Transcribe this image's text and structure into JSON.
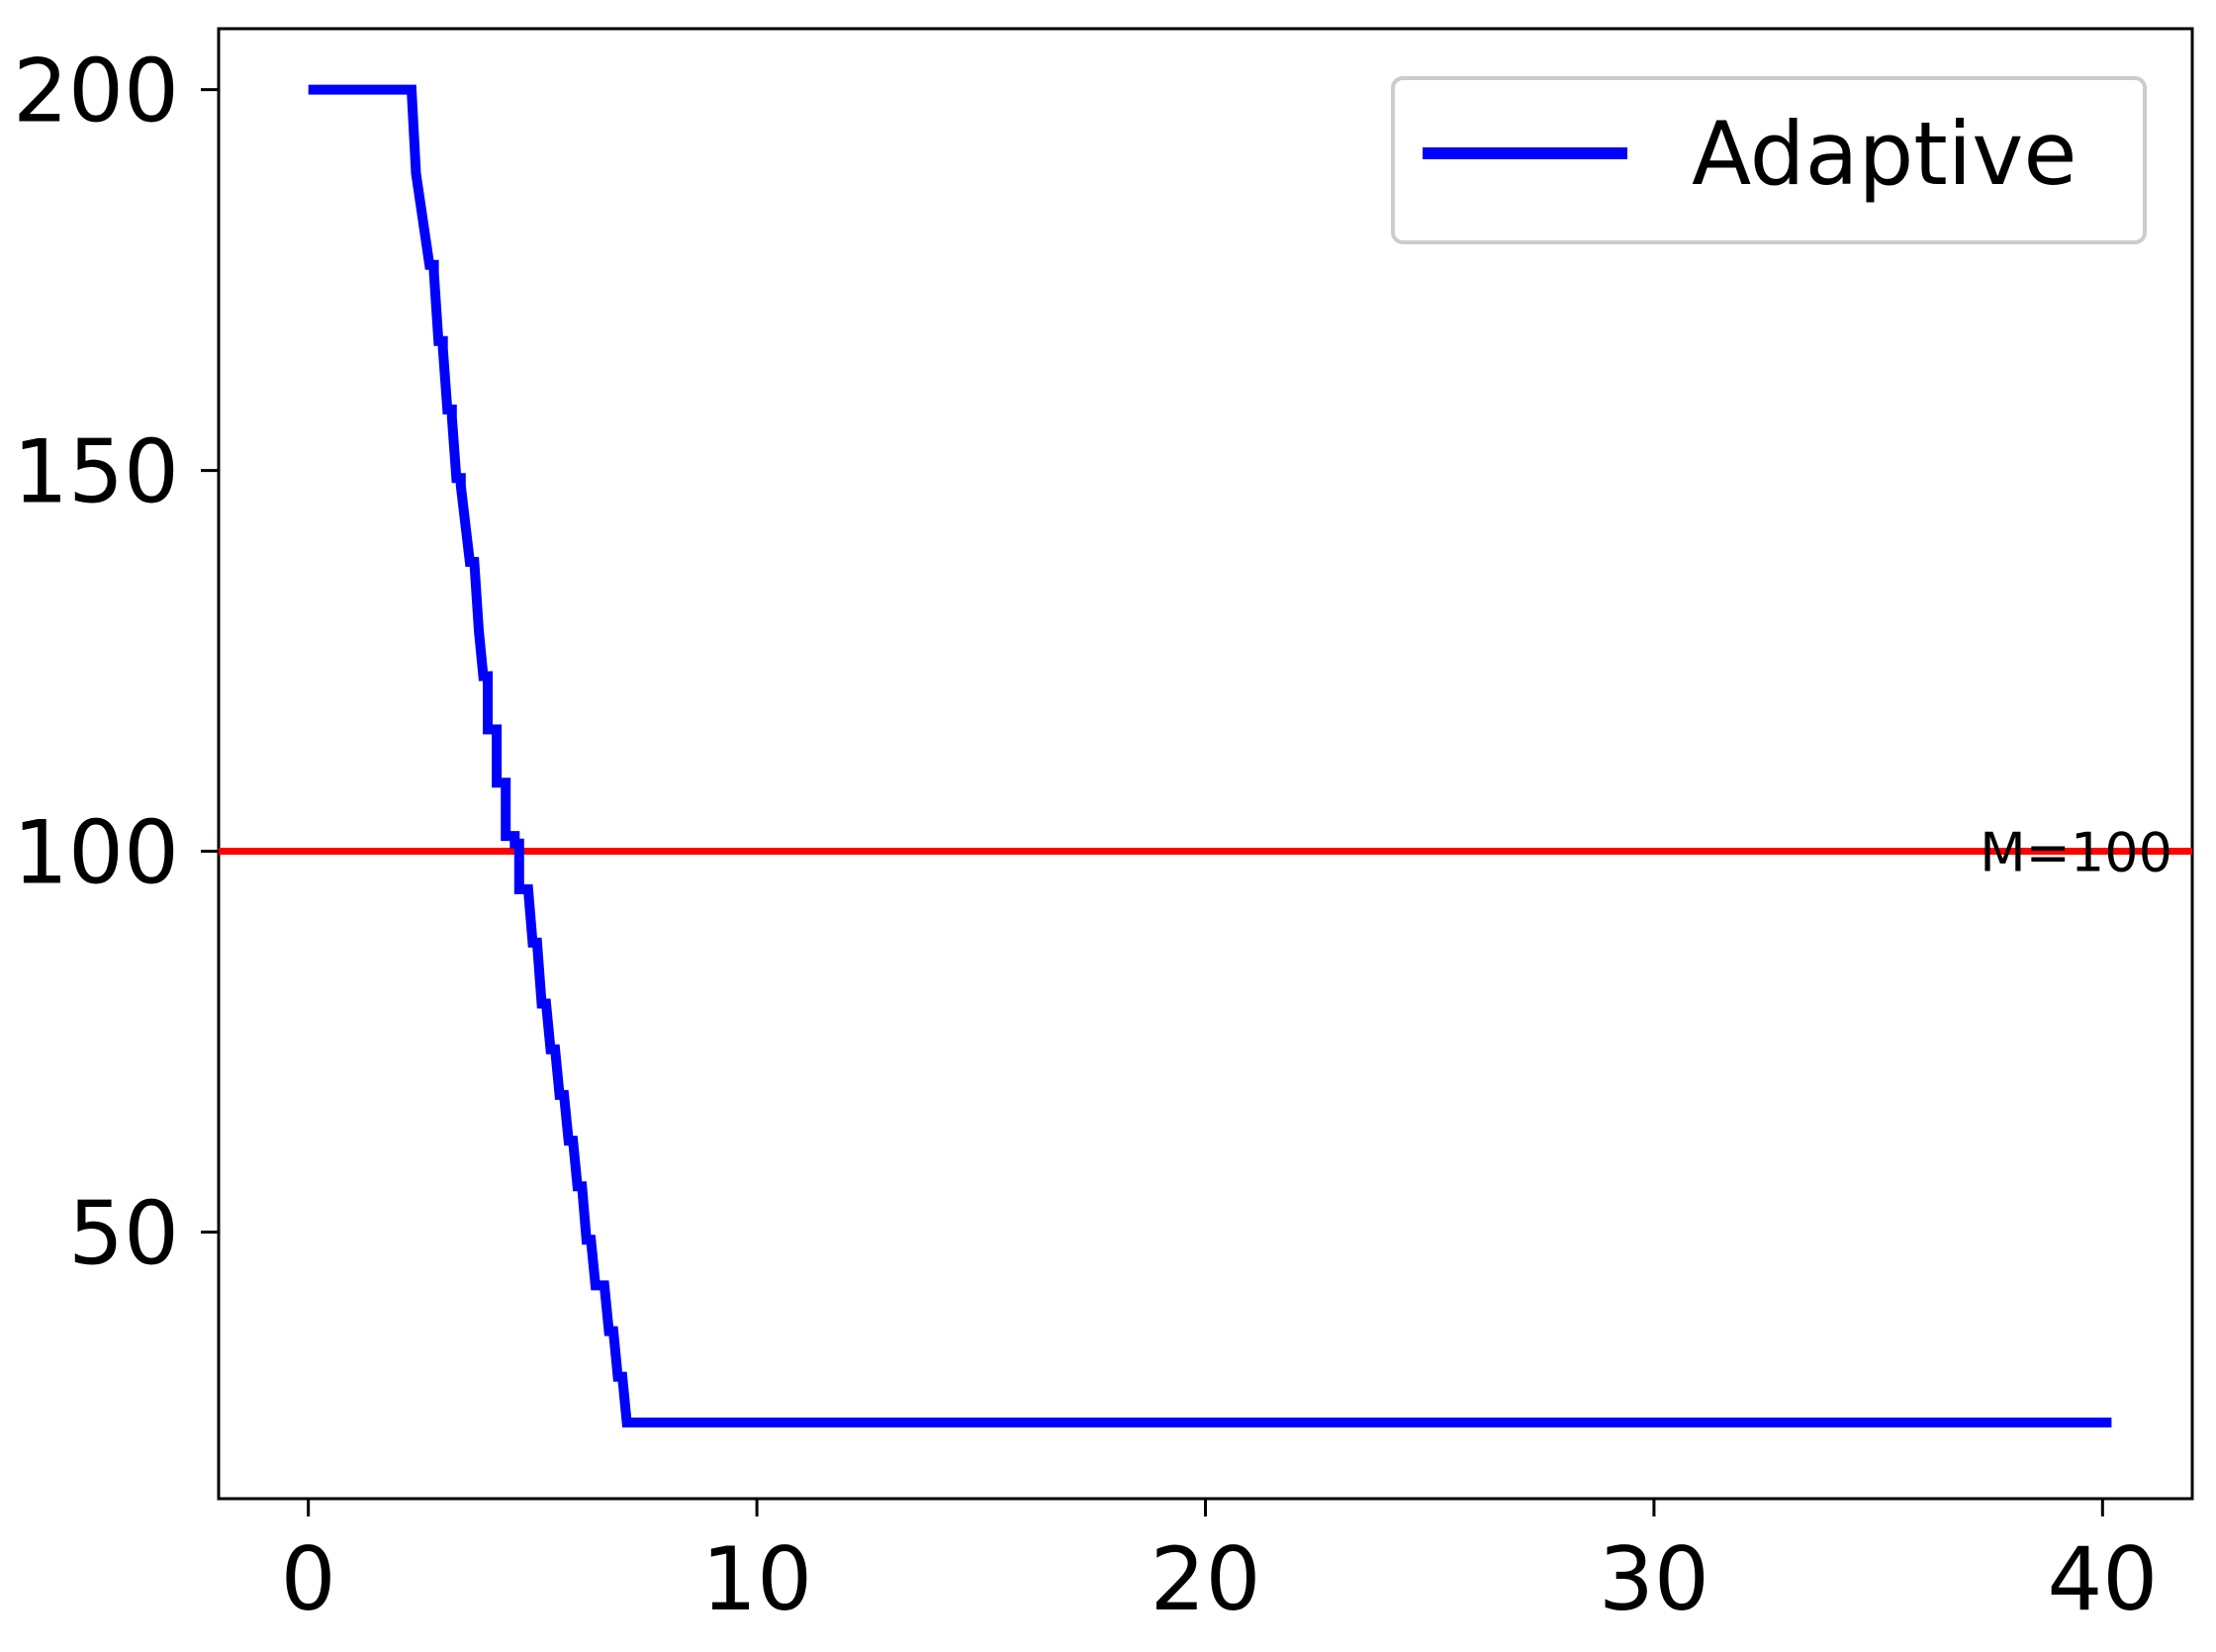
{
  "chart_data": {
    "type": "line",
    "title": "",
    "xlabel": "",
    "ylabel": "",
    "xlim": [
      -2,
      42
    ],
    "ylim": [
      15,
      208
    ],
    "xticks": [
      0,
      10,
      20,
      30,
      40
    ],
    "yticks": [
      50,
      100,
      150,
      200
    ],
    "grid": false,
    "legend_position": "top-right",
    "series": [
      {
        "name": "Adaptive",
        "color": "#0000ff",
        "x": [
          0,
          2.3,
          2.4,
          2.7,
          2.8,
          2.8,
          2.9,
          3.0,
          3.0,
          3.1,
          3.2,
          3.2,
          3.3,
          3.4,
          3.4,
          3.6,
          3.7,
          3.8,
          3.9,
          4.0,
          4.0,
          4.2,
          4.2,
          4.4,
          4.4,
          4.6,
          4.6,
          4.7,
          4.7,
          4.9,
          5.0,
          5.1,
          5.2,
          5.2,
          5.3,
          5.4,
          5.5,
          5.6,
          5.7,
          5.8,
          5.9,
          6.0,
          6.1,
          6.2,
          6.3,
          6.4,
          6.5,
          6.6,
          6.7,
          6.8,
          6.9,
          7.0,
          7.1,
          7.7,
          7.8,
          8.5,
          8.6,
          10.3,
          10.4,
          40.2
        ],
        "y": [
          200,
          200,
          189,
          177,
          177,
          176,
          167,
          167,
          166,
          158,
          158,
          157,
          149,
          149,
          148,
          138,
          138,
          129,
          123,
          123,
          116,
          116,
          109,
          109,
          102,
          102,
          101,
          101,
          95,
          95,
          88,
          88,
          80,
          80,
          80,
          74,
          74,
          68,
          68,
          62,
          62,
          56,
          56,
          49,
          49,
          43,
          43,
          43,
          37,
          37,
          31,
          31,
          25,
          25,
          25,
          25,
          25,
          25,
          25,
          25
        ],
        "stroke_width": 10
      }
    ],
    "reference_lines": [
      {
        "orientation": "horizontal",
        "y": 100,
        "color": "#ff0000",
        "label": "M=100"
      }
    ]
  }
}
